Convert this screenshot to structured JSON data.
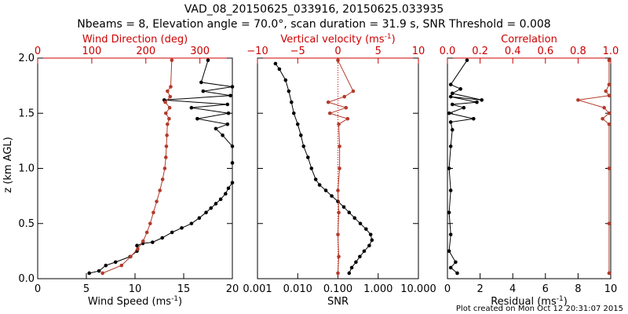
{
  "figure": {
    "title_line1": "VAD_08_20150625_033916, 20150625.033935",
    "title_line2": "Nbeams = 8, Elevation angle = 70.0°, scan duration = 31.9 s, SNR Threshold = 0.008",
    "footer": "Plot created on Mon Oct 12 20:31:07 2015"
  },
  "colors": {
    "black_series": "#000000",
    "red_series": "#b33a2a",
    "axis": "#000000",
    "red_axis": "#cc0000"
  },
  "chart_data": [
    {
      "type": "line",
      "panel": "wind",
      "ylabel": "z (km AGL)",
      "ylim": [
        0,
        2.0
      ],
      "y_ticks": [
        "0.0",
        "0.5",
        "1.0",
        "1.5",
        "2.0"
      ],
      "x_bottom": {
        "label_prefix": "Wind Speed (ms",
        "label_sup": "-1",
        "label_suffix": ")",
        "lim": [
          0,
          20
        ],
        "ticks": [
          "0",
          "5",
          "10",
          "15",
          "20"
        ]
      },
      "x_top": {
        "label": "Wind Direction (deg)",
        "lim": [
          0,
          360
        ],
        "ticks": [
          "0",
          "100",
          "200",
          "300"
        ]
      },
      "series": [
        {
          "axis": "bottom",
          "color": "black",
          "marker": "dot",
          "points": [
            [
              5.3,
              0.05
            ],
            [
              6.3,
              0.07
            ],
            [
              7.0,
              0.12
            ],
            [
              8.0,
              0.15
            ],
            [
              9.5,
              0.2
            ],
            [
              10.2,
              0.25
            ],
            [
              10.2,
              0.3
            ],
            [
              10.8,
              0.32
            ],
            [
              11.8,
              0.33
            ],
            [
              12.8,
              0.37
            ],
            [
              13.8,
              0.42
            ],
            [
              14.8,
              0.46
            ],
            [
              15.8,
              0.5
            ],
            [
              16.6,
              0.55
            ],
            [
              17.3,
              0.6
            ],
            [
              17.8,
              0.64
            ],
            [
              18.3,
              0.68
            ],
            [
              18.8,
              0.72
            ],
            [
              19.3,
              0.77
            ],
            [
              19.6,
              0.82
            ],
            [
              20.0,
              0.87
            ],
            [
              20.0,
              1.05
            ],
            [
              20.0,
              1.2
            ],
            [
              19.0,
              1.3
            ],
            [
              18.3,
              1.36
            ],
            [
              19.5,
              1.4
            ],
            [
              16.4,
              1.45
            ],
            [
              19.6,
              1.5
            ],
            [
              15.8,
              1.55
            ],
            [
              19.5,
              1.58
            ],
            [
              13.0,
              1.62
            ],
            [
              19.8,
              1.66
            ],
            [
              17.0,
              1.7
            ],
            [
              20.0,
              1.74
            ],
            [
              16.8,
              1.78
            ],
            [
              17.5,
              1.98
            ]
          ]
        },
        {
          "axis": "top",
          "color": "red",
          "marker": "dot",
          "points": [
            [
              120,
              0.05
            ],
            [
              155,
              0.12
            ],
            [
              172,
              0.2
            ],
            [
              185,
              0.27
            ],
            [
              195,
              0.34
            ],
            [
              202,
              0.42
            ],
            [
              208,
              0.5
            ],
            [
              214,
              0.6
            ],
            [
              220,
              0.7
            ],
            [
              226,
              0.8
            ],
            [
              231,
              0.9
            ],
            [
              235,
              1.0
            ],
            [
              237,
              1.1
            ],
            [
              238,
              1.2
            ],
            [
              239,
              1.3
            ],
            [
              240,
              1.4
            ],
            [
              243,
              1.45
            ],
            [
              237,
              1.5
            ],
            [
              244,
              1.55
            ],
            [
              236,
              1.6
            ],
            [
              245,
              1.65
            ],
            [
              240,
              1.7
            ],
            [
              246,
              1.74
            ],
            [
              248,
              1.98
            ]
          ]
        }
      ]
    },
    {
      "type": "line",
      "panel": "vv_snr",
      "ylim": [
        0,
        2.0
      ],
      "x_bottom": {
        "label": "SNR",
        "lim": [
          0.001,
          10
        ],
        "scale": "log",
        "ticks": [
          "0.001",
          "0.010",
          "0.100",
          "1.000",
          "10.000"
        ]
      },
      "x_top": {
        "label_prefix": "Vertical velocity (ms",
        "label_sup": "-1",
        "label_suffix": ")",
        "lim": [
          -10,
          10
        ],
        "ticks": [
          "−10",
          "−5",
          "0",
          "5",
          "10"
        ]
      },
      "series": [
        {
          "axis": "bottom",
          "color": "black",
          "marker": "dot",
          "points": [
            [
              0.19,
              0.05
            ],
            [
              0.22,
              0.1
            ],
            [
              0.28,
              0.15
            ],
            [
              0.35,
              0.2
            ],
            [
              0.45,
              0.25
            ],
            [
              0.6,
              0.3
            ],
            [
              0.7,
              0.35
            ],
            [
              0.65,
              0.4
            ],
            [
              0.5,
              0.45
            ],
            [
              0.36,
              0.5
            ],
            [
              0.26,
              0.55
            ],
            [
              0.19,
              0.6
            ],
            [
              0.14,
              0.65
            ],
            [
              0.1,
              0.7
            ],
            [
              0.07,
              0.75
            ],
            [
              0.05,
              0.8
            ],
            [
              0.035,
              0.85
            ],
            [
              0.028,
              0.9
            ],
            [
              0.022,
              1.0
            ],
            [
              0.018,
              1.1
            ],
            [
              0.014,
              1.2
            ],
            [
              0.012,
              1.3
            ],
            [
              0.01,
              1.4
            ],
            [
              0.008,
              1.5
            ],
            [
              0.007,
              1.6
            ],
            [
              0.006,
              1.7
            ],
            [
              0.005,
              1.8
            ],
            [
              0.0035,
              1.9
            ],
            [
              0.0028,
              1.95
            ]
          ]
        },
        {
          "axis": "top",
          "color": "red",
          "marker": "dot",
          "points": [
            [
              0.0,
              0.05
            ],
            [
              0.1,
              0.2
            ],
            [
              0.0,
              0.4
            ],
            [
              0.1,
              0.6
            ],
            [
              0.0,
              0.8
            ],
            [
              0.2,
              1.0
            ],
            [
              0.2,
              1.2
            ],
            [
              0.1,
              1.4
            ],
            [
              1.2,
              1.45
            ],
            [
              -1.0,
              1.5
            ],
            [
              1.0,
              1.55
            ],
            [
              -1.2,
              1.6
            ],
            [
              0.8,
              1.65
            ],
            [
              1.9,
              1.7
            ],
            [
              0.0,
              1.98
            ]
          ]
        }
      ]
    },
    {
      "type": "line",
      "panel": "corr",
      "ylim": [
        0,
        2.0
      ],
      "x_bottom": {
        "label_prefix": "Residual (ms",
        "label_sup": "-1",
        "label_suffix": ")",
        "lim": [
          0,
          10
        ],
        "ticks": [
          "0",
          "2",
          "4",
          "6",
          "8",
          "10"
        ]
      },
      "x_top": {
        "label": "Correlation",
        "lim": [
          0,
          1
        ],
        "ticks": [
          "0.0",
          "0.2",
          "0.4",
          "0.6",
          "0.8",
          "1.0"
        ]
      },
      "series": [
        {
          "axis": "bottom",
          "color": "black",
          "marker": "dot",
          "points": [
            [
              0.6,
              0.05
            ],
            [
              0.2,
              0.1
            ],
            [
              0.5,
              0.15
            ],
            [
              0.1,
              0.25
            ],
            [
              0.2,
              0.4
            ],
            [
              0.1,
              0.6
            ],
            [
              0.2,
              0.8
            ],
            [
              0.1,
              1.0
            ],
            [
              0.2,
              1.2
            ],
            [
              0.3,
              1.35
            ],
            [
              0.2,
              1.42
            ],
            [
              1.6,
              1.45
            ],
            [
              0.1,
              1.5
            ],
            [
              1.0,
              1.55
            ],
            [
              0.3,
              1.58
            ],
            [
              1.8,
              1.6
            ],
            [
              0.2,
              1.65
            ],
            [
              2.1,
              1.62
            ],
            [
              0.3,
              1.68
            ],
            [
              0.8,
              1.72
            ],
            [
              0.2,
              1.76
            ],
            [
              1.2,
              1.98
            ]
          ]
        },
        {
          "axis": "top",
          "color": "red",
          "marker": "dot",
          "points": [
            [
              0.99,
              0.05
            ],
            [
              0.99,
              0.5
            ],
            [
              0.99,
              1.0
            ],
            [
              0.99,
              1.4
            ],
            [
              0.95,
              1.45
            ],
            [
              0.99,
              1.5
            ],
            [
              0.96,
              1.55
            ],
            [
              0.8,
              1.62
            ],
            [
              0.99,
              1.66
            ],
            [
              0.97,
              1.7
            ],
            [
              0.99,
              1.76
            ],
            [
              0.99,
              1.98
            ]
          ]
        }
      ]
    }
  ]
}
